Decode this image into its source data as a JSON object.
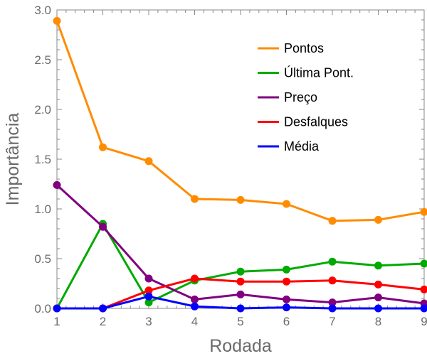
{
  "chart_data": {
    "type": "line",
    "xlabel": "Rodada",
    "ylabel": "Importância",
    "x": [
      1,
      2,
      3,
      4,
      5,
      6,
      7,
      8,
      9
    ],
    "xlim": [
      1,
      9
    ],
    "ylim": [
      0,
      3.0
    ],
    "y_ticks": [
      "0.0",
      "0.5",
      "1.0",
      "1.5",
      "2.0",
      "2.5",
      "3.0"
    ],
    "x_ticks": [
      "1",
      "2",
      "3",
      "4",
      "5",
      "6",
      "7",
      "8",
      "9"
    ],
    "grid": false,
    "legend_position": "top-right",
    "series": [
      {
        "name": "Pontos",
        "color": "#ff8c00",
        "values": [
          2.89,
          1.62,
          1.48,
          1.1,
          1.09,
          1.05,
          0.88,
          0.89,
          0.97
        ]
      },
      {
        "name": "Última Pont.",
        "color": "#00aa00",
        "values": [
          0.0,
          0.85,
          0.06,
          0.28,
          0.37,
          0.39,
          0.47,
          0.43,
          0.45
        ]
      },
      {
        "name": "Preço",
        "color": "#800080",
        "values": [
          1.24,
          0.82,
          0.3,
          0.09,
          0.14,
          0.09,
          0.06,
          0.11,
          0.05
        ]
      },
      {
        "name": "Desfalques",
        "color": "#ff0000",
        "values": [
          0.0,
          0.0,
          0.18,
          0.3,
          0.27,
          0.27,
          0.28,
          0.24,
          0.19
        ]
      },
      {
        "name": "Média",
        "color": "#0000ff",
        "values": [
          0.0,
          0.0,
          0.12,
          0.02,
          0.0,
          0.01,
          0.0,
          0.0,
          0.0
        ]
      }
    ]
  }
}
